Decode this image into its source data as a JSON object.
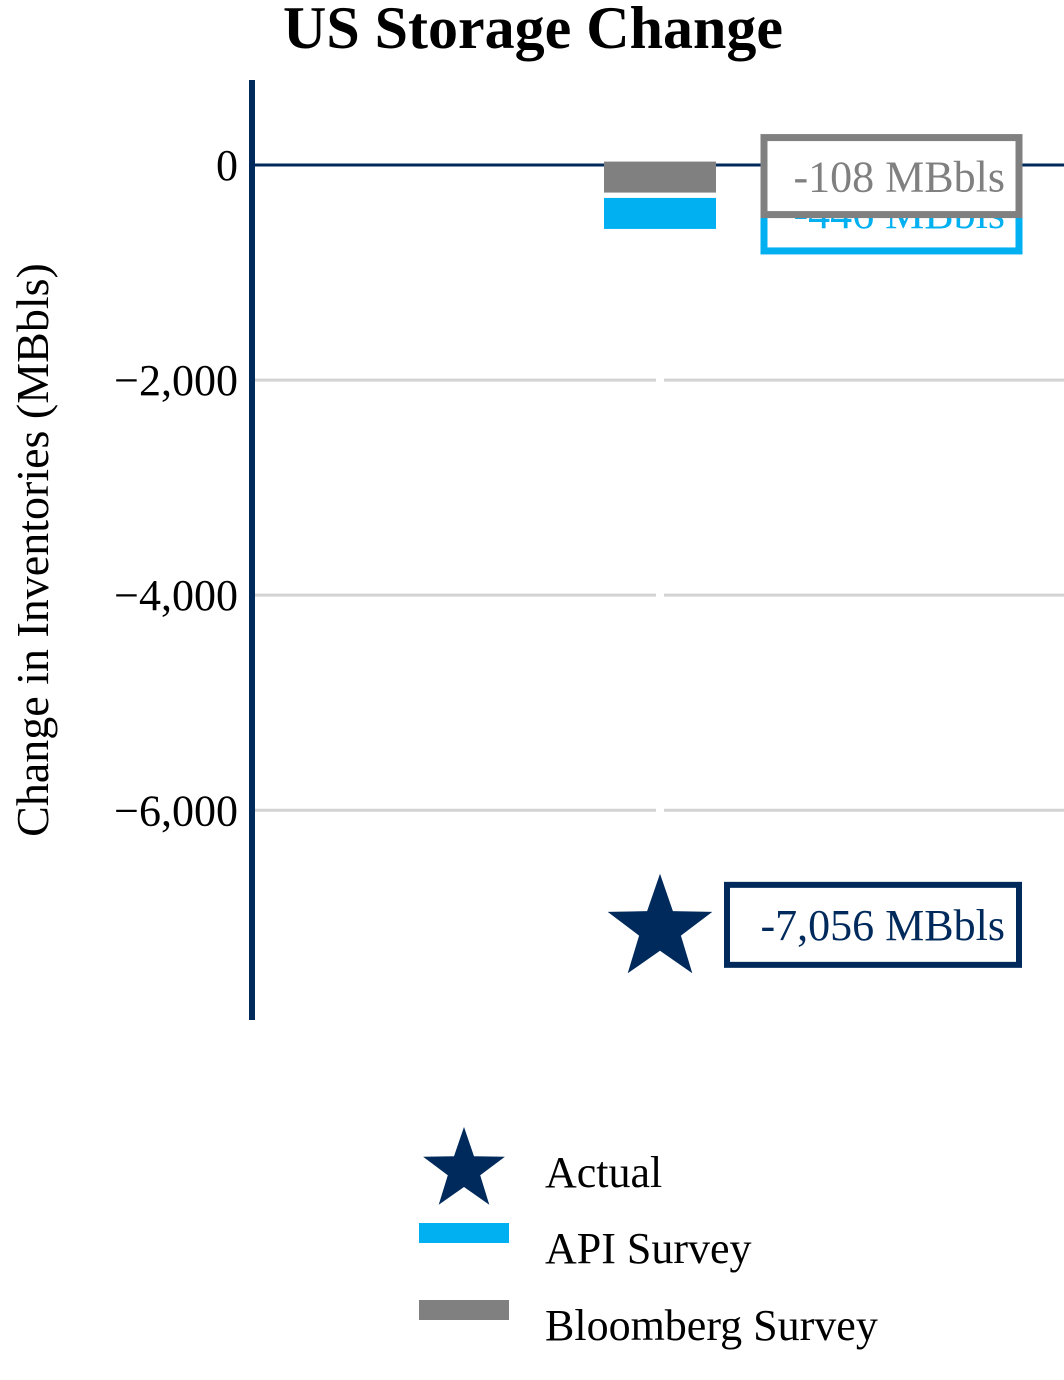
{
  "chart_data": {
    "type": "scatter",
    "title": "US Storage Change",
    "ylabel": "Change in Inventories (MBbls)",
    "xlabel": "",
    "ylim": [
      -7950,
      790
    ],
    "yticks": [
      0,
      -2000,
      -4000,
      -6000
    ],
    "ytick_labels": [
      "0",
      "−2,000",
      "−4,000",
      "−6,000"
    ],
    "grid": true,
    "legend_position": "bottom",
    "series": [
      {
        "name": "Actual",
        "marker": "star",
        "value": -7056,
        "label": "-7,056 MBbls",
        "color": "#002a5c"
      },
      {
        "name": "API Survey",
        "marker": "bar",
        "value": -446,
        "label": "-446 MBbls",
        "color": "#00b0f0"
      },
      {
        "name": "Bloomberg Survey",
        "marker": "bar",
        "value": -108,
        "label": "-108 MBbls",
        "color": "#808080"
      }
    ]
  }
}
